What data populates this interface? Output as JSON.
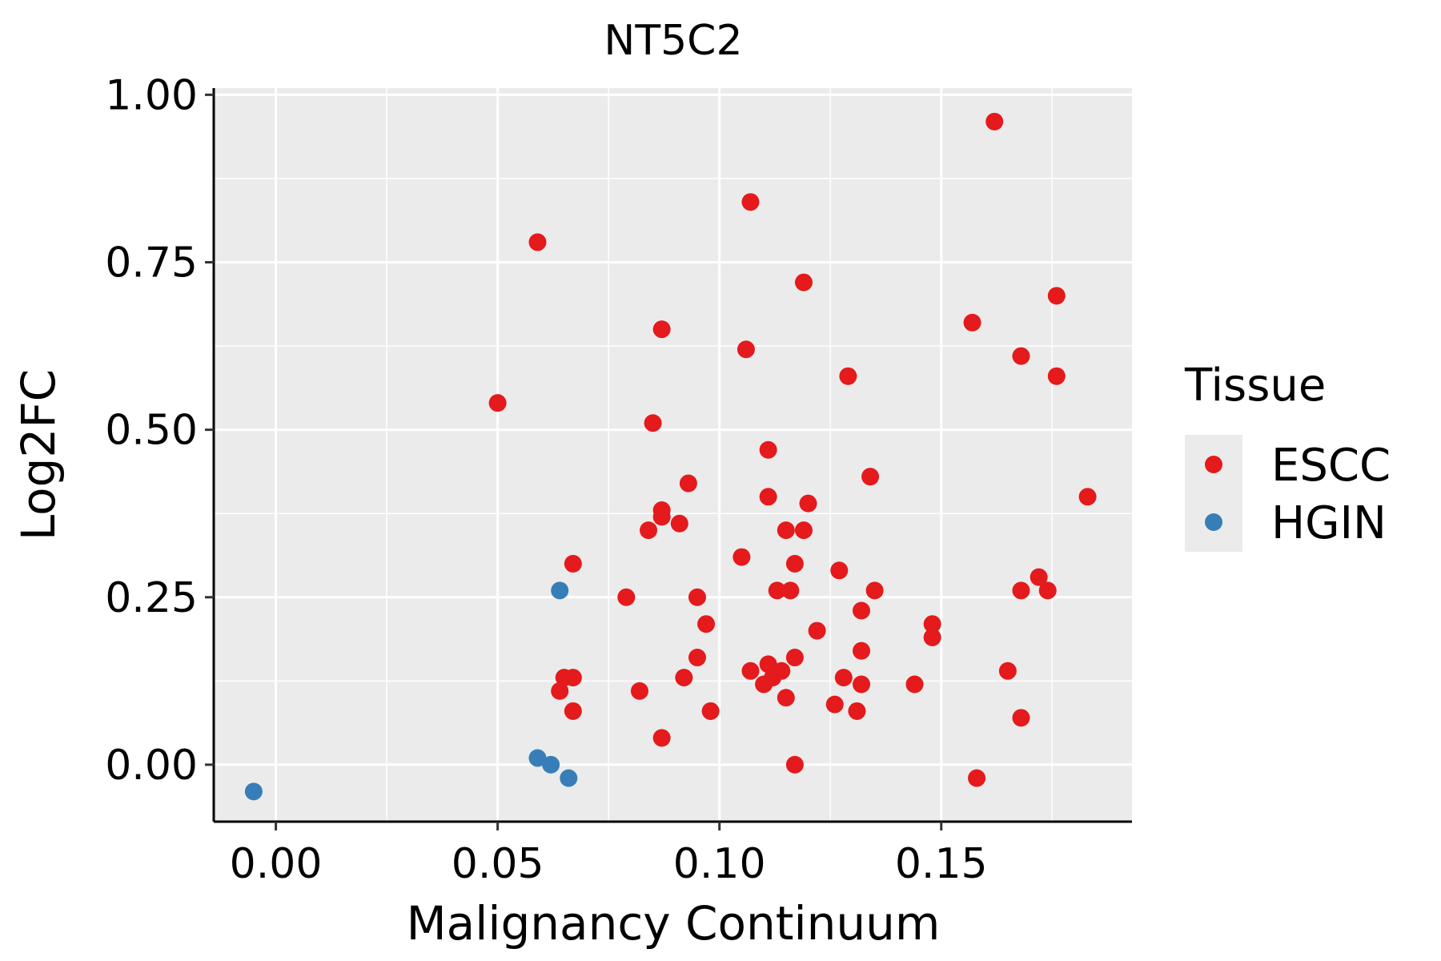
{
  "chart_data": {
    "type": "scatter",
    "title": "NT5C2",
    "xlabel": "Malignancy Continuum",
    "ylabel": "Log2FC",
    "xlim": [
      -0.014,
      0.193
    ],
    "ylim": [
      -0.085,
      1.01
    ],
    "x_ticks": [
      0.0,
      0.05,
      0.1,
      0.15
    ],
    "x_tick_labels": [
      "0.00",
      "0.05",
      "0.10",
      "0.15"
    ],
    "y_ticks": [
      0.0,
      0.25,
      0.5,
      0.75,
      1.0
    ],
    "y_tick_labels": [
      "0.00",
      "0.25",
      "0.50",
      "0.75",
      "1.00"
    ],
    "grid": true,
    "legend": {
      "title": "Tissue",
      "position": "right",
      "entries": [
        {
          "name": "ESCC",
          "color": "#E41A1C"
        },
        {
          "name": "HGIN",
          "color": "#377EB8"
        }
      ]
    },
    "series": [
      {
        "name": "ESCC",
        "color": "#E41A1C",
        "points": [
          [
            0.162,
            0.96
          ],
          [
            0.107,
            0.84
          ],
          [
            0.059,
            0.78
          ],
          [
            0.119,
            0.72
          ],
          [
            0.176,
            0.7
          ],
          [
            0.157,
            0.66
          ],
          [
            0.087,
            0.65
          ],
          [
            0.106,
            0.62
          ],
          [
            0.168,
            0.61
          ],
          [
            0.129,
            0.58
          ],
          [
            0.176,
            0.58
          ],
          [
            0.05,
            0.54
          ],
          [
            0.085,
            0.51
          ],
          [
            0.111,
            0.47
          ],
          [
            0.134,
            0.43
          ],
          [
            0.093,
            0.42
          ],
          [
            0.111,
            0.4
          ],
          [
            0.183,
            0.4
          ],
          [
            0.12,
            0.39
          ],
          [
            0.087,
            0.38
          ],
          [
            0.087,
            0.37
          ],
          [
            0.091,
            0.36
          ],
          [
            0.084,
            0.35
          ],
          [
            0.115,
            0.35
          ],
          [
            0.119,
            0.35
          ],
          [
            0.105,
            0.31
          ],
          [
            0.117,
            0.3
          ],
          [
            0.067,
            0.3
          ],
          [
            0.127,
            0.29
          ],
          [
            0.172,
            0.28
          ],
          [
            0.168,
            0.26
          ],
          [
            0.174,
            0.26
          ],
          [
            0.113,
            0.26
          ],
          [
            0.116,
            0.26
          ],
          [
            0.135,
            0.26
          ],
          [
            0.079,
            0.25
          ],
          [
            0.095,
            0.25
          ],
          [
            0.132,
            0.23
          ],
          [
            0.097,
            0.21
          ],
          [
            0.148,
            0.21
          ],
          [
            0.122,
            0.2
          ],
          [
            0.148,
            0.19
          ],
          [
            0.132,
            0.17
          ],
          [
            0.095,
            0.16
          ],
          [
            0.117,
            0.16
          ],
          [
            0.111,
            0.15
          ],
          [
            0.107,
            0.14
          ],
          [
            0.114,
            0.14
          ],
          [
            0.165,
            0.14
          ],
          [
            0.065,
            0.13
          ],
          [
            0.092,
            0.13
          ],
          [
            0.128,
            0.13
          ],
          [
            0.112,
            0.13
          ],
          [
            0.067,
            0.13
          ],
          [
            0.11,
            0.12
          ],
          [
            0.132,
            0.12
          ],
          [
            0.144,
            0.12
          ],
          [
            0.064,
            0.11
          ],
          [
            0.082,
            0.11
          ],
          [
            0.115,
            0.1
          ],
          [
            0.126,
            0.09
          ],
          [
            0.067,
            0.08
          ],
          [
            0.098,
            0.08
          ],
          [
            0.131,
            0.08
          ],
          [
            0.168,
            0.07
          ],
          [
            0.087,
            0.04
          ],
          [
            0.117,
            0.0
          ],
          [
            0.158,
            -0.02
          ]
        ]
      },
      {
        "name": "HGIN",
        "color": "#377EB8",
        "points": [
          [
            0.064,
            0.26
          ],
          [
            0.059,
            0.01
          ],
          [
            0.062,
            0.0
          ],
          [
            0.066,
            -0.02
          ],
          [
            -0.005,
            -0.04
          ]
        ]
      }
    ]
  }
}
